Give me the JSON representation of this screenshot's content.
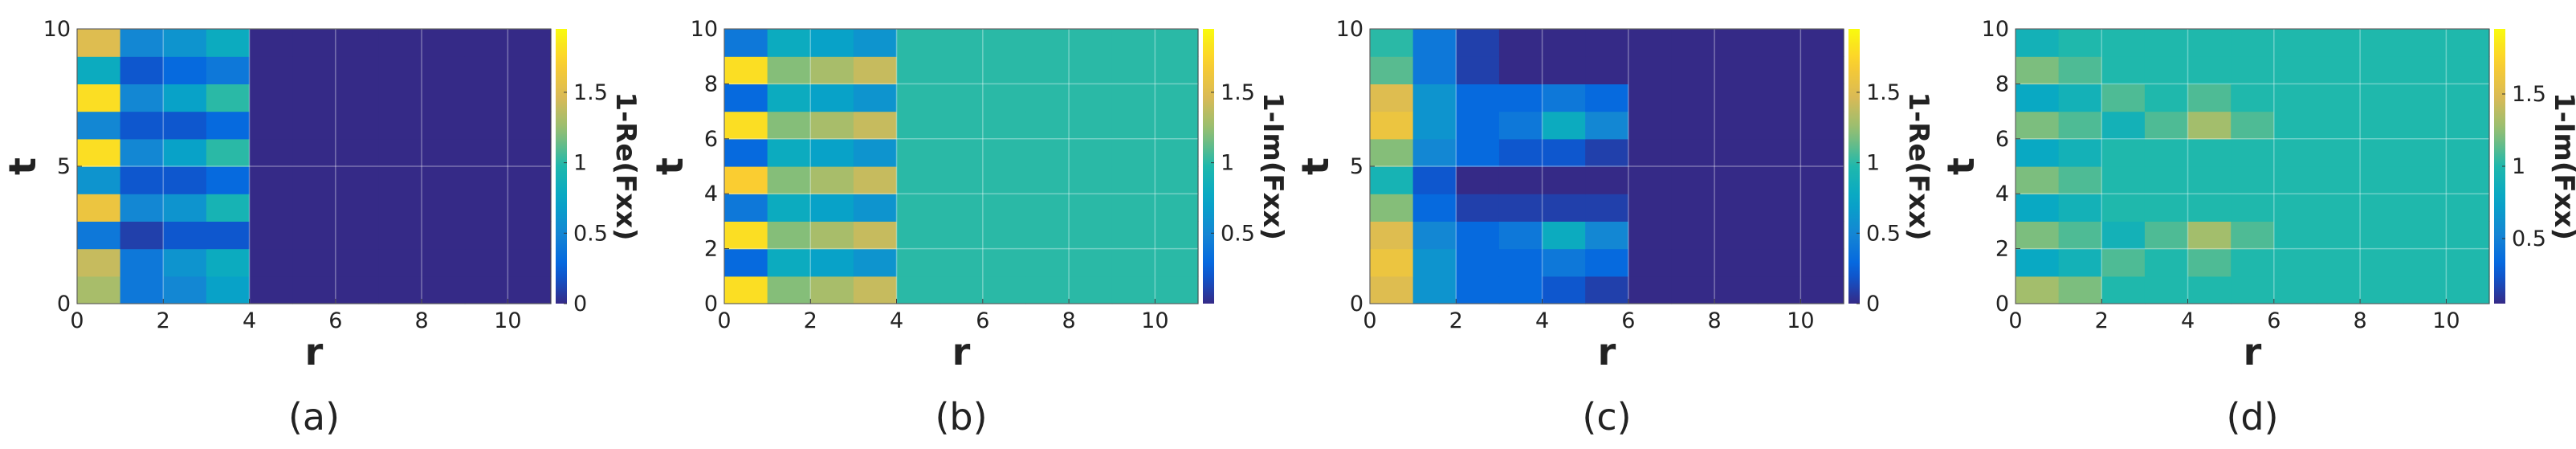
{
  "chart_data": [
    {
      "type": "heatmap",
      "caption": "(a)",
      "x_label": "r",
      "y_label": "t",
      "colorbar_label": "1-Re(Fxx)",
      "colormap": "parula",
      "grid": true,
      "x": [
        0.5,
        1.5,
        2.5,
        3.5,
        4.5,
        5.5,
        6.5,
        7.5,
        8.5,
        9.5,
        10.5
      ],
      "y": [
        0.5,
        1.5,
        2.5,
        3.5,
        4.5,
        5.5,
        6.5,
        7.5,
        8.5,
        9.5
      ],
      "xlim": [
        0,
        11
      ],
      "ylim": [
        0,
        10
      ],
      "xticks": [
        0,
        2,
        4,
        6,
        8,
        10
      ],
      "yticks": [
        0,
        5,
        10
      ],
      "zlim": [
        0,
        1.95
      ],
      "zticks": [
        0,
        0.5,
        1,
        1.5
      ],
      "values": [
        [
          1.3,
          0.4,
          0.5,
          0.7,
          0,
          0,
          0,
          0,
          0,
          0,
          0
        ],
        [
          1.4,
          0.4,
          0.6,
          0.8,
          0,
          0,
          0,
          0,
          0,
          0,
          0
        ],
        [
          0.4,
          0.1,
          0.2,
          0.2,
          0,
          0,
          0,
          0,
          0,
          0,
          0
        ],
        [
          1.6,
          0.5,
          0.6,
          0.9,
          0,
          0,
          0,
          0,
          0,
          0,
          0
        ],
        [
          0.6,
          0.2,
          0.2,
          0.3,
          0,
          0,
          0,
          0,
          0,
          0,
          0
        ],
        [
          1.8,
          0.5,
          0.7,
          1,
          0,
          0,
          0,
          0,
          0,
          0,
          0
        ],
        [
          0.5,
          0.2,
          0.2,
          0.3,
          0,
          0,
          0,
          0,
          0,
          0,
          0
        ],
        [
          1.8,
          0.5,
          0.7,
          1,
          0,
          0,
          0,
          0,
          0,
          0,
          0
        ],
        [
          0.8,
          0.2,
          0.3,
          0.4,
          0,
          0,
          0,
          0,
          0,
          0,
          0
        ],
        [
          1.5,
          0.5,
          0.6,
          0.8,
          0,
          0,
          0,
          0,
          0,
          0,
          0
        ]
      ]
    },
    {
      "type": "heatmap",
      "caption": "(b)",
      "x_label": "r",
      "y_label": "t",
      "colorbar_label": "1-Im(Fxx)",
      "colormap": "parula",
      "grid": true,
      "x": [
        0.5,
        1.5,
        2.5,
        3.5,
        4.5,
        5.5,
        6.5,
        7.5,
        8.5,
        9.5,
        10.5
      ],
      "y": [
        0.5,
        1.5,
        2.5,
        3.5,
        4.5,
        5.5,
        6.5,
        7.5,
        8.5,
        9.5
      ],
      "xlim": [
        0,
        11
      ],
      "ylim": [
        0,
        10
      ],
      "xticks": [
        0,
        2,
        4,
        6,
        8,
        10
      ],
      "yticks": [
        0,
        2,
        4,
        6,
        8,
        10
      ],
      "zlim": [
        0,
        1.95
      ],
      "zticks": [
        0.5,
        1,
        1.5
      ],
      "values": [
        [
          1.8,
          1.2,
          1.3,
          1.4,
          1,
          1,
          1,
          1,
          1,
          1,
          1
        ],
        [
          0.3,
          0.8,
          0.7,
          0.6,
          1,
          1,
          1,
          1,
          1,
          1,
          1
        ],
        [
          1.8,
          1.2,
          1.3,
          1.4,
          1,
          1,
          1,
          1,
          1,
          1,
          1
        ],
        [
          0.4,
          0.8,
          0.7,
          0.6,
          1,
          1,
          1,
          1,
          1,
          1,
          1
        ],
        [
          1.7,
          1.2,
          1.3,
          1.4,
          1,
          1,
          1,
          1,
          1,
          1,
          1
        ],
        [
          0.3,
          0.8,
          0.7,
          0.6,
          1,
          1,
          1,
          1,
          1,
          1,
          1
        ],
        [
          1.8,
          1.2,
          1.3,
          1.4,
          1,
          1,
          1,
          1,
          1,
          1,
          1
        ],
        [
          0.3,
          0.8,
          0.7,
          0.6,
          1,
          1,
          1,
          1,
          1,
          1,
          1
        ],
        [
          1.8,
          1.2,
          1.3,
          1.4,
          1,
          1,
          1,
          1,
          1,
          1,
          1
        ],
        [
          0.4,
          0.8,
          0.7,
          0.6,
          1,
          1,
          1,
          1,
          1,
          1,
          1
        ]
      ]
    },
    {
      "type": "heatmap",
      "caption": "(c)",
      "x_label": "r",
      "y_label": "t",
      "colorbar_label": "1-Re(Fxx)",
      "colormap": "parula",
      "grid": true,
      "x": [
        0.5,
        1.5,
        2.5,
        3.5,
        4.5,
        5.5,
        6.5,
        7.5,
        8.5,
        9.5,
        10.5
      ],
      "y": [
        0.5,
        1.5,
        2.5,
        3.5,
        4.5,
        5.5,
        6.5,
        7.5,
        8.5,
        9.5
      ],
      "xlim": [
        0,
        11
      ],
      "ylim": [
        0,
        10
      ],
      "xticks": [
        0,
        2,
        4,
        6,
        8,
        10
      ],
      "yticks": [
        0,
        5,
        10
      ],
      "zlim": [
        0,
        1.95
      ],
      "zticks": [
        0,
        0.5,
        1,
        1.5
      ],
      "values": [
        [
          1.5,
          0.6,
          0.3,
          0.3,
          0.2,
          0.1,
          0,
          0,
          0,
          0,
          0
        ],
        [
          1.6,
          0.6,
          0.3,
          0.3,
          0.4,
          0.3,
          0,
          0,
          0,
          0,
          0
        ],
        [
          1.5,
          0.5,
          0.3,
          0.4,
          0.8,
          0.5,
          0,
          0,
          0,
          0,
          0
        ],
        [
          1.2,
          0.3,
          0.1,
          0.1,
          0.1,
          0.1,
          0,
          0,
          0,
          0,
          0
        ],
        [
          0.9,
          0.2,
          0,
          0,
          0,
          0,
          0,
          0,
          0,
          0,
          0
        ],
        [
          1.2,
          0.5,
          0.3,
          0.2,
          0.2,
          0.1,
          0,
          0,
          0,
          0,
          0
        ],
        [
          1.6,
          0.6,
          0.3,
          0.4,
          0.8,
          0.5,
          0,
          0,
          0,
          0,
          0
        ],
        [
          1.5,
          0.6,
          0.3,
          0.3,
          0.4,
          0.3,
          0,
          0,
          0,
          0,
          0
        ],
        [
          1.1,
          0.4,
          0.1,
          0,
          0,
          0,
          0,
          0,
          0,
          0,
          0
        ],
        [
          1,
          0.4,
          0.1,
          0,
          0,
          0,
          0,
          0,
          0,
          0,
          0
        ]
      ]
    },
    {
      "type": "heatmap",
      "caption": "(d)",
      "x_label": "r",
      "y_label": "t",
      "colorbar_label": "1-Im(Fxx)",
      "colormap": "parula",
      "grid": true,
      "x": [
        0.5,
        1.5,
        2.5,
        3.5,
        4.5,
        5.5,
        6.5,
        7.5,
        8.5,
        9.5,
        10.5
      ],
      "y": [
        0.5,
        1.5,
        2.5,
        3.5,
        4.5,
        5.5,
        6.5,
        7.5,
        8.5,
        9.5
      ],
      "xlim": [
        0,
        11
      ],
      "ylim": [
        0,
        10
      ],
      "xticks": [
        0,
        2,
        4,
        6,
        8,
        10
      ],
      "yticks": [
        0,
        2,
        4,
        6,
        8,
        10
      ],
      "zlim": [
        0.05,
        1.95
      ],
      "zticks": [
        0.5,
        1,
        1.5
      ],
      "values": [
        [
          1.3,
          1.2,
          1,
          1,
          1,
          1,
          1,
          1,
          1,
          1,
          1
        ],
        [
          0.8,
          0.9,
          1.1,
          1,
          1.1,
          1,
          1,
          1,
          1,
          1,
          1
        ],
        [
          1.2,
          1.1,
          0.9,
          1.1,
          1.3,
          1.1,
          1,
          1,
          1,
          1,
          1
        ],
        [
          0.8,
          0.9,
          1,
          1,
          1,
          1,
          1,
          1,
          1,
          1,
          1
        ],
        [
          1.2,
          1.1,
          1,
          1,
          1,
          1,
          1,
          1,
          1,
          1,
          1
        ],
        [
          0.8,
          0.9,
          1,
          1,
          1,
          1,
          1,
          1,
          1,
          1,
          1
        ],
        [
          1.2,
          1.1,
          0.9,
          1.1,
          1.3,
          1.1,
          1,
          1,
          1,
          1,
          1
        ],
        [
          0.8,
          0.9,
          1.1,
          1,
          1.1,
          1,
          1,
          1,
          1,
          1,
          1
        ],
        [
          1.2,
          1.1,
          1,
          1,
          1,
          1,
          1,
          1,
          1,
          1,
          1
        ],
        [
          0.9,
          1,
          1,
          1,
          1,
          1,
          1,
          1,
          1,
          1,
          1
        ]
      ]
    }
  ]
}
